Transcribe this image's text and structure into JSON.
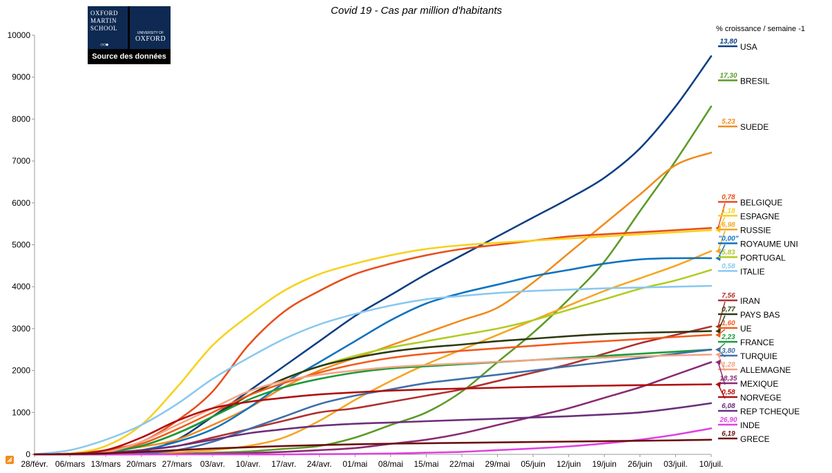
{
  "logo": {
    "line1": "OXFORD",
    "line2": "MARTIN",
    "line3": "SCHOOL",
    "university": "UNIVERSITY OF",
    "oxford": "OXFORD",
    "source_link": "Source des données"
  },
  "chart_data": {
    "type": "line",
    "title": "Covid 19 - Cas par million d'habitants",
    "xlabel": "",
    "ylabel": "",
    "ylim": [
      0,
      10000
    ],
    "yticks": [
      0,
      1000,
      2000,
      3000,
      4000,
      5000,
      6000,
      7000,
      8000,
      9000,
      10000
    ],
    "categories": [
      "28/févr.",
      "06/mars",
      "13/mars",
      "20/mars",
      "27/mars",
      "03/avr.",
      "10/avr.",
      "17/avr.",
      "24/avr.",
      "01/mai",
      "08/mai",
      "15/mai",
      "22/mai",
      "29/mai",
      "05/juin",
      "12/juin",
      "19/juin",
      "26/juin",
      "03/juil.",
      "10/juil."
    ],
    "legend_header": "% croissance / semaine -1",
    "grid": false,
    "series": [
      {
        "name": "USA",
        "growth": "13,80",
        "color": "#0b3f82",
        "values": [
          0,
          0,
          10,
          70,
          350,
          900,
          1500,
          2100,
          2700,
          3300,
          3800,
          4300,
          4750,
          5200,
          5650,
          6100,
          6600,
          7300,
          8300,
          9500
        ],
        "label_at": 5555,
        "arrow": false
      },
      {
        "name": "BRESIL",
        "growth": "17,30",
        "color": "#5a9b27",
        "values": [
          0,
          0,
          0,
          5,
          15,
          40,
          70,
          130,
          200,
          400,
          700,
          1000,
          1500,
          2200,
          2900,
          3700,
          4600,
          5800,
          7000,
          8300
        ],
        "label_at": 5555,
        "arrow": false
      },
      {
        "name": "SUEDE",
        "growth": "5,23",
        "color": "#f08c1c",
        "values": [
          0,
          20,
          80,
          180,
          350,
          700,
          1100,
          1600,
          2000,
          2300,
          2600,
          2900,
          3200,
          3500,
          4100,
          4800,
          5500,
          6200,
          6900,
          7200
        ],
        "label_at": 5555,
        "arrow": false
      },
      {
        "name": "BELGIQUE",
        "growth": "0,78",
        "color": "#e94e1b",
        "values": [
          0,
          20,
          100,
          300,
          800,
          1500,
          2600,
          3400,
          3900,
          4300,
          4550,
          4750,
          4900,
          5000,
          5100,
          5200,
          5250,
          5300,
          5350,
          5400
        ],
        "label_at": 5555,
        "arrow": true
      },
      {
        "name": "ESPAGNE",
        "growth": "1,18",
        "color": "#f7d11d",
        "values": [
          0,
          20,
          200,
          700,
          1600,
          2600,
          3300,
          3900,
          4300,
          4550,
          4750,
          4900,
          4990,
          5050,
          5100,
          5150,
          5200,
          5250,
          5300,
          5350
        ],
        "label_at": 5555,
        "arrow": true
      },
      {
        "name": "RUSSIE",
        "growth": "6,98",
        "color": "#f5a623",
        "values": [
          0,
          0,
          5,
          20,
          50,
          100,
          200,
          400,
          800,
          1300,
          1750,
          2150,
          2500,
          2850,
          3200,
          3550,
          3900,
          4200,
          4500,
          4850
        ],
        "label_at": 5555,
        "arrow": true
      },
      {
        "name": "ROYAUME UNI",
        "growth": "\"0,00\"",
        "color": "#0d73c0",
        "values": [
          0,
          5,
          20,
          100,
          300,
          600,
          1100,
          1700,
          2200,
          2700,
          3200,
          3600,
          3850,
          4050,
          4250,
          4400,
          4550,
          4650,
          4680,
          4680
        ],
        "label_at": 5555,
        "arrow": true
      },
      {
        "name": "PORTUGAL",
        "growth": "5,83",
        "color": "#b0cc22",
        "values": [
          0,
          0,
          50,
          200,
          500,
          900,
          1400,
          1800,
          2100,
          2350,
          2550,
          2700,
          2850,
          3000,
          3200,
          3450,
          3700,
          3950,
          4150,
          4400
        ],
        "label_at": 5555,
        "arrow": false
      },
      {
        "name": "ITALIE",
        "growth": "0,58",
        "color": "#8ac8f0",
        "values": [
          0,
          100,
          350,
          700,
          1200,
          1800,
          2300,
          2750,
          3100,
          3350,
          3550,
          3700,
          3780,
          3850,
          3900,
          3930,
          3960,
          3980,
          4000,
          4020
        ],
        "label_at": 5555,
        "arrow": false
      },
      {
        "name": "IRAN",
        "growth": "7,56",
        "color": "#b03030",
        "values": [
          0,
          10,
          40,
          100,
          200,
          400,
          600,
          800,
          1000,
          1100,
          1250,
          1400,
          1550,
          1750,
          1950,
          2150,
          2400,
          2650,
          2850,
          3050
        ],
        "label_at": 5555,
        "arrow": true
      },
      {
        "name": "PAYS BAS",
        "growth": "0,77",
        "color": "#2d3a0f",
        "values": [
          0,
          5,
          50,
          200,
          500,
          900,
          1400,
          1800,
          2100,
          2300,
          2450,
          2550,
          2620,
          2700,
          2760,
          2820,
          2870,
          2900,
          2920,
          2940
        ],
        "label_at": 5555,
        "arrow": true
      },
      {
        "name": "UE",
        "growth": "1,60",
        "color": "#f25a1c",
        "values": [
          0,
          10,
          60,
          250,
          600,
          1000,
          1400,
          1700,
          1950,
          2150,
          2300,
          2400,
          2470,
          2530,
          2590,
          2650,
          2700,
          2750,
          2800,
          2850
        ],
        "label_at": 5555,
        "arrow": true
      },
      {
        "name": "FRANCE",
        "growth": "2,23",
        "color": "#1a9b3a",
        "values": [
          0,
          10,
          50,
          200,
          500,
          900,
          1300,
          1600,
          1800,
          1950,
          2050,
          2100,
          2150,
          2200,
          2250,
          2300,
          2350,
          2400,
          2450,
          2500
        ],
        "label_at": 5555,
        "arrow": true
      },
      {
        "name": "TURQUIE",
        "growth": "3,80",
        "color": "#3f6fa8",
        "values": [
          0,
          0,
          0,
          20,
          100,
          300,
          600,
          900,
          1200,
          1400,
          1550,
          1700,
          1800,
          1900,
          2000,
          2100,
          2200,
          2300,
          2400,
          2500
        ],
        "label_at": 5555,
        "arrow": true
      },
      {
        "name": "ALLEMAGNE",
        "growth": "1,28",
        "color": "#f5a482",
        "values": [
          0,
          10,
          50,
          300,
          700,
          1100,
          1500,
          1750,
          1900,
          2000,
          2080,
          2130,
          2170,
          2210,
          2250,
          2280,
          2310,
          2340,
          2360,
          2380
        ],
        "label_at": 5555,
        "arrow": true
      },
      {
        "name": "MEXIQUE",
        "growth": "18,35",
        "color": "#8a2a73",
        "values": [
          0,
          0,
          0,
          0,
          5,
          15,
          30,
          60,
          100,
          150,
          250,
          350,
          500,
          700,
          900,
          1100,
          1350,
          1600,
          1900,
          2200
        ],
        "label_at": 5555,
        "arrow": true
      },
      {
        "name": "NORVEGE",
        "growth": "0,58",
        "color": "#b20e0e",
        "values": [
          0,
          10,
          100,
          400,
          800,
          1100,
          1250,
          1350,
          1430,
          1480,
          1520,
          1550,
          1570,
          1590,
          1610,
          1625,
          1640,
          1650,
          1660,
          1670
        ],
        "label_at": 5555,
        "arrow": true
      },
      {
        "name": "REP TCHEQUE",
        "growth": "6,08",
        "color": "#6a2f7a",
        "values": [
          0,
          5,
          30,
          100,
          200,
          350,
          500,
          600,
          680,
          730,
          760,
          790,
          820,
          850,
          880,
          910,
          950,
          1000,
          1100,
          1220
        ],
        "label_at": 5555,
        "arrow": false
      },
      {
        "name": "INDE",
        "growth": "26,90",
        "color": "#e040e0",
        "values": [
          0,
          0,
          0,
          0,
          0,
          0,
          0,
          0,
          5,
          10,
          20,
          40,
          60,
          100,
          140,
          190,
          260,
          350,
          470,
          620
        ],
        "label_at": 5555,
        "arrow": false
      },
      {
        "name": "GRECE",
        "growth": "6,19",
        "color": "#6b0f0f",
        "values": [
          0,
          5,
          20,
          60,
          100,
          140,
          170,
          200,
          220,
          240,
          255,
          265,
          275,
          285,
          295,
          305,
          315,
          325,
          335,
          350
        ],
        "label_at": 5555,
        "arrow": false
      }
    ]
  }
}
